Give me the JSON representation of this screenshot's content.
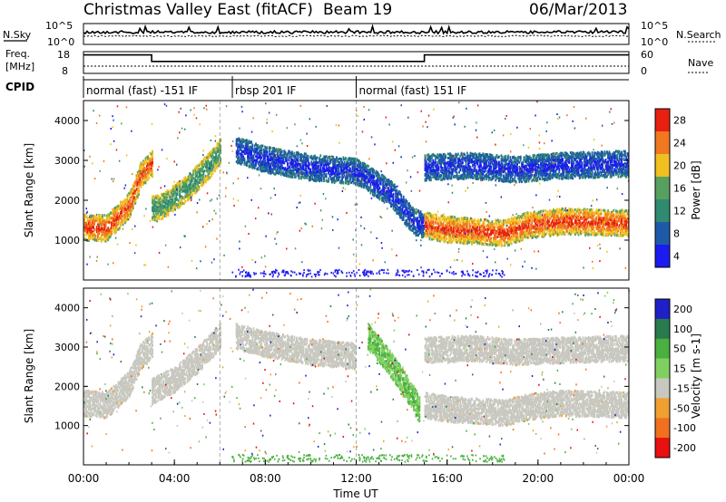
{
  "header": {
    "title": "Christmas Valley East (fitACF)",
    "beam": "Beam 19",
    "date": "06/Mar/2013"
  },
  "strips": {
    "nsky_label": "N.Sky",
    "nsearch_label": "N.Search",
    "noise_ticks": [
      "10^5",
      "10^0"
    ],
    "freq_label_1": "Freq.",
    "freq_label_2": "[MHz]",
    "freq_ticks": [
      "18",
      "8"
    ],
    "nave_label": "Nave",
    "nave_ticks": [
      "60",
      "0"
    ],
    "cpid_label": "CPID",
    "cpid_modes": [
      {
        "label": "normal (fast) -151 IF",
        "start_h": 0.0,
        "end_h": 6.55
      },
      {
        "label": "rbsp 201 IF",
        "start_h": 6.55,
        "end_h": 12.0
      },
      {
        "label": "normal (fast) 151 IF",
        "start_h": 12.0,
        "end_h": 24.0
      }
    ],
    "freq_mhz": [
      {
        "start_h": 0.0,
        "end_h": 3.0,
        "value": 16.5
      },
      {
        "start_h": 3.0,
        "end_h": 15.0,
        "value": 13.5
      },
      {
        "start_h": 15.0,
        "end_h": 24.0,
        "value": 16.5
      }
    ]
  },
  "chart_data": [
    {
      "type": "heatmap",
      "name": "power",
      "ylabel": "Slant Range [km]",
      "yticks": [
        1000,
        2000,
        3000,
        4000
      ],
      "ylim": [
        0,
        4500
      ],
      "xlim": [
        0,
        24
      ],
      "colorbar_label": "Power [dB]",
      "colorbar_ticks": [
        4,
        8,
        12,
        16,
        20,
        24,
        28
      ],
      "colorbar_colors": [
        "#1c1cf0",
        "#1f5aa8",
        "#2f8a70",
        "#58a060",
        "#f0c020",
        "#f07820",
        "#e82010"
      ],
      "bands": [
        {
          "x": [
            0.0,
            1.0,
            2.0,
            2.5,
            3.0
          ],
          "y": [
            1350,
            1330,
            1900,
            2650,
            2950
          ],
          "level": "high"
        },
        {
          "x": [
            3.0,
            3.5,
            4.5,
            5.5,
            6.0
          ],
          "y": [
            1800,
            1900,
            2300,
            2900,
            3250
          ],
          "level": "mid"
        },
        {
          "x": [
            6.7,
            8.0,
            10.0,
            12.0,
            13.5,
            14.5,
            15.0
          ],
          "y": [
            3300,
            3050,
            2850,
            2750,
            2200,
            1500,
            1400
          ],
          "level": "low"
        },
        {
          "x": [
            15.0,
            16.0,
            17.5,
            18.5,
            19.5,
            21.0,
            24.0
          ],
          "y": [
            1400,
            1300,
            1250,
            1200,
            1400,
            1500,
            1450
          ],
          "level": "high"
        },
        {
          "x": [
            15.0,
            17.0,
            19.0,
            21.0,
            24.0
          ],
          "y": [
            2850,
            2900,
            2800,
            2900,
            2950
          ],
          "level": "low"
        }
      ]
    },
    {
      "type": "heatmap",
      "name": "velocity",
      "ylabel": "Slant Range [km]",
      "yticks": [
        1000,
        2000,
        3000,
        4000
      ],
      "ylim": [
        0,
        4500
      ],
      "xlim": [
        0,
        24
      ],
      "colorbar_label": "Velocity [m s-1]",
      "colorbar_ticks": [
        200,
        100,
        50,
        15,
        -15,
        -50,
        -100,
        -200
      ],
      "colorbar_colors": [
        "#2020c8",
        "#2a7a50",
        "#4ab040",
        "#80d060",
        "#c8c8c0",
        "#f0a030",
        "#f07020",
        "#e81010"
      ],
      "bands": [
        {
          "x": [
            0.0,
            1.0,
            2.0,
            2.5,
            3.0
          ],
          "y": [
            1600,
            1550,
            2100,
            2800,
            3050
          ],
          "level": "ground"
        },
        {
          "x": [
            3.0,
            4.0,
            5.0,
            6.0
          ],
          "y": [
            1900,
            2200,
            2700,
            3300
          ],
          "level": "ground"
        },
        {
          "x": [
            6.7,
            8.0,
            10.0,
            12.0
          ],
          "y": [
            3300,
            3100,
            2900,
            2800
          ],
          "level": "ground"
        },
        {
          "x": [
            12.5,
            13.5,
            14.3,
            14.8
          ],
          "y": [
            3300,
            2600,
            1900,
            1400
          ],
          "level": "green"
        },
        {
          "x": [
            15.0,
            16.0,
            17.5,
            18.5,
            19.5,
            21.0,
            24.0
          ],
          "y": [
            1550,
            1450,
            1400,
            1350,
            1500,
            1600,
            1550
          ],
          "level": "ground"
        },
        {
          "x": [
            15.0,
            17.0,
            19.0,
            21.0,
            24.0
          ],
          "y": [
            2950,
            3000,
            2900,
            2950,
            3000
          ],
          "level": "ground"
        }
      ]
    }
  ],
  "xaxis": {
    "label": "Time UT",
    "ticks": [
      "00:00",
      "04:00",
      "08:00",
      "12:00",
      "16:00",
      "20:00",
      "00:00"
    ],
    "tick_hours": [
      0,
      4,
      8,
      12,
      16,
      20,
      24
    ]
  }
}
